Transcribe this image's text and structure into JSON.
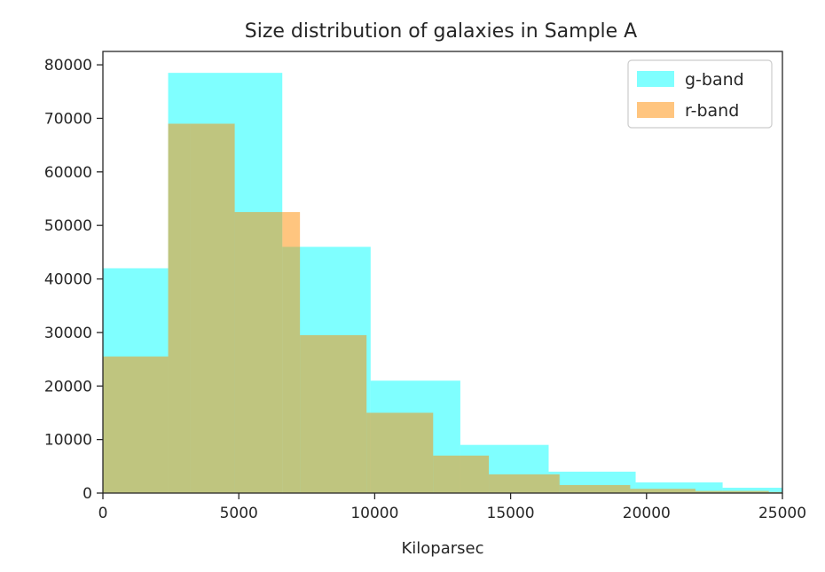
{
  "chart_data": {
    "type": "histogram",
    "title": "Size distribution of galaxies in Sample A",
    "xlabel": "Kiloparsec",
    "ylabel": "",
    "xlim": [
      0,
      25000
    ],
    "ylim": [
      0,
      82500
    ],
    "xticks": [
      0,
      5000,
      10000,
      15000,
      20000,
      25000
    ],
    "yticks": [
      0,
      10000,
      20000,
      30000,
      40000,
      50000,
      60000,
      70000,
      80000
    ],
    "grid": false,
    "legend_position": "top-right",
    "series": [
      {
        "name": "g-band",
        "color": "#00ffff",
        "alpha": 0.5,
        "bin_edges": [
          0,
          2400,
          6600,
          9850,
          13150,
          16400,
          19600,
          22800,
          26200
        ],
        "values": [
          42000,
          78500,
          46000,
          21000,
          9000,
          4000,
          2000,
          1000
        ]
      },
      {
        "name": "r-band",
        "color": "#ff8c00",
        "alpha": 0.5,
        "bin_edges": [
          0,
          2400,
          3200,
          4850,
          6600,
          7250,
          9700,
          12150,
          14200,
          16800,
          19400,
          21800,
          24500,
          27000
        ],
        "values": [
          25500,
          69000,
          69000,
          52500,
          52500,
          29500,
          15000,
          7000,
          3500,
          1500,
          800,
          400,
          200
        ]
      }
    ]
  }
}
